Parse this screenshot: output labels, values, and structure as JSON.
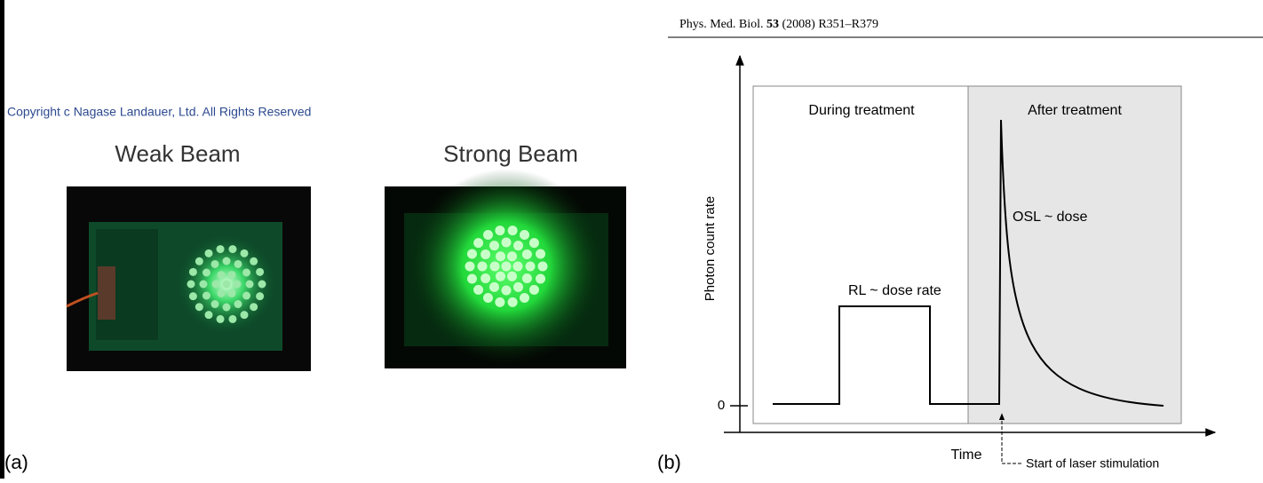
{
  "header": {
    "journal": "Phys. Med. Biol.",
    "volume": "53",
    "pages": "(2008) R351–R379"
  },
  "panel_a": {
    "copyright": "Copyright c Nagase Landauer, Ltd. All Rights Reserved",
    "images": [
      {
        "caption": "Weak Beam"
      },
      {
        "caption": "Strong Beam"
      }
    ],
    "label": "(a)"
  },
  "panel_b": {
    "label": "(b)",
    "y_axis_label": "Photon count rate",
    "x_axis_label": "Time",
    "zero_tick": "0",
    "regions": [
      "During treatment",
      "After treatment"
    ],
    "annotations": [
      "RL ~ dose rate",
      "OSL ~ dose",
      "Start of laser stimulation"
    ]
  }
}
